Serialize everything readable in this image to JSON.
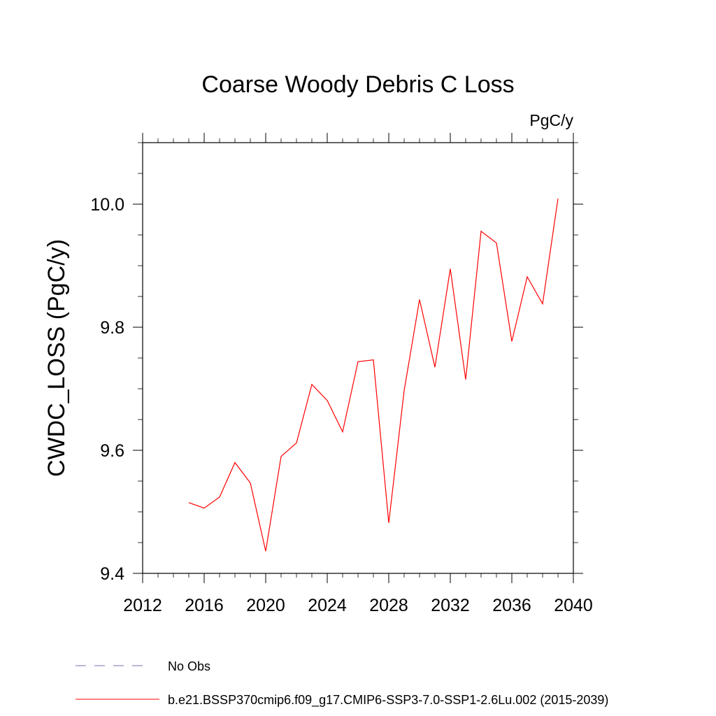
{
  "chart_data": {
    "type": "line",
    "title": "Coarse Woody Debris C Loss",
    "units_label": "PgC/y",
    "xlabel": "",
    "ylabel": "CWDC_LOSS  (PgC/y)",
    "xlim": [
      2012,
      2040
    ],
    "ylim": [
      9.4,
      10.1
    ],
    "xticks": [
      2012,
      2016,
      2020,
      2024,
      2028,
      2032,
      2036,
      2040
    ],
    "xtick_labels": [
      "2012",
      "2016",
      "2020",
      "2024",
      "2028",
      "2032",
      "2036",
      "2040"
    ],
    "yticks": [
      9.4,
      9.6,
      9.8,
      10.0
    ],
    "ytick_labels": [
      "9.4",
      "9.6",
      "9.8",
      "10.0"
    ],
    "yminor_step": 0.05,
    "xminor_step": 1,
    "grid": false,
    "series": [
      {
        "name": "b.e21.BSSP370cmip6.f09_g17.CMIP6-SSP3-7.0-SSP1-2.6Lu.002 (2015-2039)",
        "color": "#ff0000",
        "style": "solid",
        "x": [
          2015,
          2016,
          2017,
          2018,
          2019,
          2020,
          2021,
          2022,
          2023,
          2024,
          2025,
          2026,
          2027,
          2028,
          2029,
          2030,
          2031,
          2032,
          2033,
          2034,
          2035,
          2036,
          2037,
          2038,
          2039
        ],
        "y": [
          9.515,
          9.506,
          9.524,
          9.58,
          9.547,
          9.436,
          9.59,
          9.612,
          9.707,
          9.681,
          9.63,
          9.744,
          9.747,
          9.482,
          9.697,
          9.845,
          9.735,
          9.895,
          9.715,
          9.956,
          9.937,
          9.777,
          9.882,
          9.838,
          10.009
        ]
      }
    ],
    "legend": [
      {
        "label": "No Obs",
        "color": "#7b68b5",
        "style": "dashed"
      },
      {
        "label": "b.e21.BSSP370cmip6.f09_g17.CMIP6-SSP3-7.0-SSP1-2.6Lu.002 (2015-2039)",
        "color": "#ff0000",
        "style": "solid"
      }
    ],
    "legend_position": "bottom-left"
  }
}
